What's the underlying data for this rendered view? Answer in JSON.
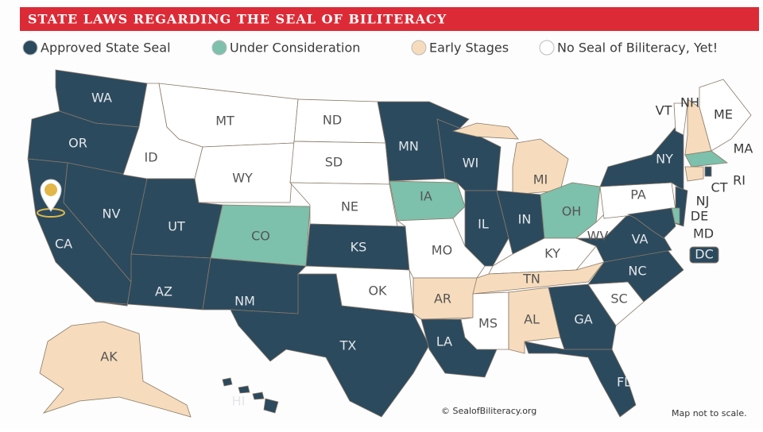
{
  "header": {
    "title": "STATE LAWS REGARDING THE SEAL OF BILITERACY"
  },
  "legend": [
    {
      "label": "Approved State Seal",
      "color": "#2c4a5e"
    },
    {
      "label": "Under Consideration",
      "color": "#7dc0ab"
    },
    {
      "label": "Early Stages",
      "color": "#f6dcbc"
    },
    {
      "label": "No Seal of Biliteracy, Yet!",
      "color": "#ffffff"
    }
  ],
  "states": [
    {
      "label": "WA",
      "color": "#2c4a5e"
    },
    {
      "label": "OR",
      "color": "#2c4a5e"
    },
    {
      "label": "CA",
      "color": "#2c4a5e"
    },
    {
      "label": "NV",
      "color": "#2c4a5e"
    },
    {
      "label": "ID",
      "color": "#ffffff"
    },
    {
      "label": "MT",
      "color": "#ffffff"
    },
    {
      "label": "WY",
      "color": "#ffffff"
    },
    {
      "label": "UT",
      "color": "#2c4a5e"
    },
    {
      "label": "CO",
      "color": "#7dc0ab"
    },
    {
      "label": "AZ",
      "color": "#2c4a5e"
    },
    {
      "label": "NM",
      "color": "#2c4a5e"
    },
    {
      "label": "ND",
      "color": "#ffffff"
    },
    {
      "label": "SD",
      "color": "#ffffff"
    },
    {
      "label": "NE",
      "color": "#ffffff"
    },
    {
      "label": "KS",
      "color": "#2c4a5e"
    },
    {
      "label": "OK",
      "color": "#ffffff"
    },
    {
      "label": "TX",
      "color": "#2c4a5e"
    },
    {
      "label": "MN",
      "color": "#2c4a5e"
    },
    {
      "label": "IA",
      "color": "#7dc0ab"
    },
    {
      "label": "MO",
      "color": "#ffffff"
    },
    {
      "label": "AR",
      "color": "#f6dcbc"
    },
    {
      "label": "LA",
      "color": "#2c4a5e"
    },
    {
      "label": "WI",
      "color": "#2c4a5e"
    },
    {
      "label": "IL",
      "color": "#2c4a5e"
    },
    {
      "label": "MI",
      "color": "#f6dcbc"
    },
    {
      "label": "IN",
      "color": "#2c4a5e"
    },
    {
      "label": "OH",
      "color": "#7dc0ab"
    },
    {
      "label": "KY",
      "color": "#ffffff"
    },
    {
      "label": "TN",
      "color": "#f6dcbc"
    },
    {
      "label": "MS",
      "color": "#ffffff"
    },
    {
      "label": "AL",
      "color": "#f6dcbc"
    },
    {
      "label": "GA",
      "color": "#2c4a5e"
    },
    {
      "label": "FL",
      "color": "#2c4a5e"
    },
    {
      "label": "SC",
      "color": "#ffffff"
    },
    {
      "label": "NC",
      "color": "#2c4a5e"
    },
    {
      "label": "VA",
      "color": "#2c4a5e"
    },
    {
      "label": "WV",
      "color": "#ffffff"
    },
    {
      "label": "PA",
      "color": "#ffffff"
    },
    {
      "label": "NY",
      "color": "#2c4a5e"
    },
    {
      "label": "VT",
      "color": "#ffffff"
    },
    {
      "label": "NH",
      "color": "#f6dcbc"
    },
    {
      "label": "ME",
      "color": "#ffffff"
    },
    {
      "label": "MA",
      "color": "#7dc0ab"
    },
    {
      "label": "CT",
      "color": "#f6dcbc"
    },
    {
      "label": "RI",
      "color": "#2c4a5e"
    },
    {
      "label": "NJ",
      "color": "#2c4a5e"
    },
    {
      "label": "DE",
      "color": "#7dc0ab"
    },
    {
      "label": "MD",
      "color": "#2c4a5e"
    },
    {
      "label": "DC",
      "color": "#2c4a5e"
    },
    {
      "label": "AK",
      "color": "#f6dcbc"
    },
    {
      "label": "HI",
      "color": "#2c4a5e"
    }
  ],
  "footer": {
    "credit": "© SealofBiliteracy.org",
    "note": "Map not to scale."
  }
}
